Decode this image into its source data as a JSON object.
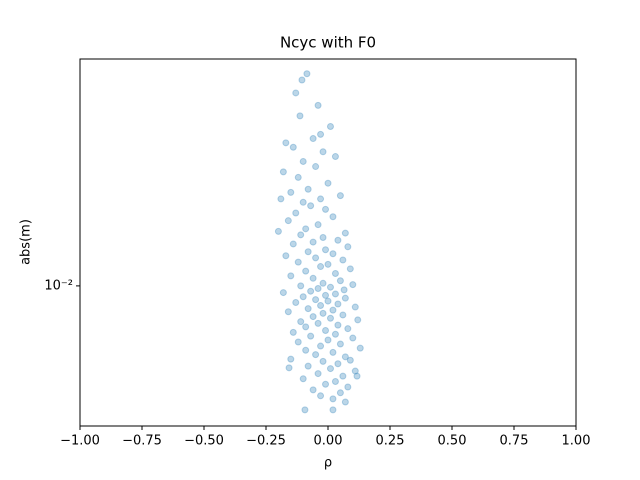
{
  "chart_data": {
    "type": "scatter",
    "title": "Ncyc with F0",
    "xlabel": "ρ",
    "ylabel": "abs(m)",
    "yscale": "log",
    "color": "#1f77b4",
    "alpha": 0.3,
    "xlim": [
      -1,
      1
    ],
    "ylim": [
      0.00341,
      0.0571
    ],
    "xticks": [
      {
        "value": -1,
        "label": "−1.00"
      },
      {
        "value": -0.75,
        "label": "−0.75"
      },
      {
        "value": -0.5,
        "label": "−0.50"
      },
      {
        "value": -0.25,
        "label": "−0.25"
      },
      {
        "value": 0,
        "label": "0.00"
      },
      {
        "value": 0.25,
        "label": "0.25"
      },
      {
        "value": 0.5,
        "label": "0.50"
      },
      {
        "value": 0.75,
        "label": "0.75"
      },
      {
        "value": 1,
        "label": "1.00"
      }
    ],
    "yticks": [
      {
        "value": 0.01,
        "label": "10⁻²"
      }
    ],
    "x": [
      -0.085,
      -0.105,
      -0.13,
      -0.04,
      -0.113,
      0.01,
      -0.03,
      -0.06,
      -0.17,
      -0.14,
      -0.02,
      0.03,
      -0.1,
      -0.05,
      -0.18,
      -0.12,
      0.0,
      -0.08,
      -0.15,
      0.05,
      -0.03,
      -0.19,
      -0.1,
      -0.07,
      -0.01,
      -0.13,
      0.02,
      -0.16,
      -0.04,
      -0.09,
      0.07,
      -0.2,
      -0.11,
      -0.02,
      0.04,
      -0.06,
      -0.14,
      0.08,
      -0.01,
      -0.08,
      0.02,
      -0.17,
      -0.05,
      0.06,
      -0.12,
      0.0,
      -0.03,
      0.09,
      -0.09,
      0.03,
      -0.15,
      -0.06,
      0.05,
      -0.02,
      0.1,
      -0.11,
      0.01,
      -0.04,
      0.065,
      -0.07,
      -0.18,
      0.03,
      -0.01,
      -0.1,
      0.07,
      -0.05,
      0.0,
      -0.13,
      0.04,
      -0.03,
      0.11,
      -0.08,
      0.02,
      -0.16,
      -0.02,
      0.06,
      -0.06,
      0.01,
      0.12,
      -0.11,
      -0.04,
      0.04,
      -0.09,
      0.08,
      -0.01,
      -0.14,
      0.03,
      -0.07,
      0.1,
      0.0,
      -0.12,
      0.05,
      -0.03,
      0.13,
      -0.09,
      0.02,
      -0.05,
      0.07,
      -0.15,
      0.09,
      -0.02,
      0.04,
      -0.08,
      0.01,
      -0.157,
      0.11,
      -0.04,
      0.06,
      0.117,
      -0.1,
      0.03,
      -0.01,
      0.08,
      -0.06,
      0.05,
      -0.03,
      0.02,
      0.07,
      -0.093,
      0.02
    ],
    "values": [
      0.051,
      0.0486,
      0.044,
      0.04,
      0.0369,
      0.034,
      0.032,
      0.031,
      0.03,
      0.029,
      0.028,
      0.027,
      0.026,
      0.025,
      0.024,
      0.023,
      0.022,
      0.021,
      0.0205,
      0.02,
      0.0195,
      0.0195,
      0.019,
      0.0185,
      0.018,
      0.0175,
      0.017,
      0.0165,
      0.016,
      0.0155,
      0.015,
      0.0152,
      0.0148,
      0.0145,
      0.0142,
      0.014,
      0.0138,
      0.0135,
      0.0132,
      0.013,
      0.0128,
      0.0126,
      0.0124,
      0.0122,
      0.012,
      0.0118,
      0.0116,
      0.0114,
      0.0112,
      0.011,
      0.0108,
      0.0106,
      0.0104,
      0.0102,
      0.0101,
      0.01,
      0.0099,
      0.0098,
      0.0097,
      0.0096,
      0.0095,
      0.0094,
      0.0093,
      0.0092,
      0.0091,
      0.009,
      0.0089,
      0.0088,
      0.0087,
      0.0086,
      0.0085,
      0.0084,
      0.0083,
      0.0082,
      0.0081,
      0.008,
      0.0079,
      0.0078,
      0.0077,
      0.0076,
      0.0075,
      0.0074,
      0.0073,
      0.0072,
      0.0071,
      0.007,
      0.0069,
      0.0068,
      0.0067,
      0.0066,
      0.0065,
      0.0064,
      0.0063,
      0.0062,
      0.0061,
      0.006,
      0.0059,
      0.0058,
      0.0057,
      0.00565,
      0.0056,
      0.0055,
      0.0054,
      0.0053,
      0.00533,
      0.0052,
      0.0051,
      0.005,
      0.005,
      0.0049,
      0.0048,
      0.0047,
      0.0046,
      0.0045,
      0.0044,
      0.0043,
      0.0042,
      0.0041,
      0.00386,
      0.00386
    ]
  }
}
